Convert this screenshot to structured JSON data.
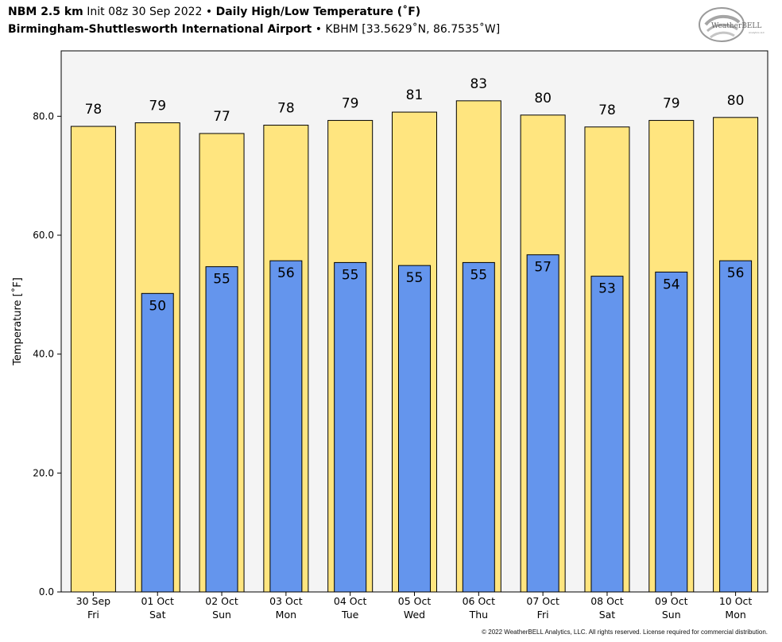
{
  "header": {
    "model": "NBM 2.5 km",
    "init": "Init 08z 30 Sep 2022",
    "sep": "•",
    "product": "Daily High/Low Temperature (˚F)",
    "station_name": "Birmingham-Shuttlesworth International Airport",
    "station_id": "KBHM [33.5629˚N, 86.7535˚W]"
  },
  "logo": {
    "text": "WeatherBELL",
    "sub": "Analytics LLC"
  },
  "footer": {
    "copyright": "© 2022 WeatherBELL Analytics, LLC. All rights reserved. License required for commercial distribution."
  },
  "colors": {
    "high": "#FFE57F",
    "low": "#6495ED",
    "plot_bg": "#F4F4F4"
  },
  "chart_data": {
    "type": "bar",
    "ylabel": "Temperature [˚F]",
    "ylim": [
      0,
      91
    ],
    "yticks": [
      "0.0",
      "20.0",
      "40.0",
      "60.0",
      "80.0"
    ],
    "categories": [
      [
        "30 Sep",
        "Fri"
      ],
      [
        "01 Oct",
        "Sat"
      ],
      [
        "02 Oct",
        "Sun"
      ],
      [
        "03 Oct",
        "Mon"
      ],
      [
        "04 Oct",
        "Tue"
      ],
      [
        "05 Oct",
        "Wed"
      ],
      [
        "06 Oct",
        "Thu"
      ],
      [
        "07 Oct",
        "Fri"
      ],
      [
        "08 Oct",
        "Sat"
      ],
      [
        "09 Oct",
        "Sun"
      ],
      [
        "10 Oct",
        "Mon"
      ]
    ],
    "series": [
      {
        "values": [
          78.3,
          78.9,
          77.1,
          78.5,
          79.3,
          80.7,
          82.6,
          80.2,
          78.2,
          79.3,
          79.8
        ],
        "labels": [
          "78",
          "79",
          "77",
          "78",
          "79",
          "81",
          "83",
          "80",
          "78",
          "79",
          "80"
        ]
      },
      {
        "values": [
          null,
          50.2,
          54.7,
          55.7,
          55.4,
          54.9,
          55.4,
          56.7,
          53.1,
          53.8,
          55.7
        ],
        "labels": [
          "",
          "50",
          "55",
          "56",
          "55",
          "55",
          "55",
          "57",
          "53",
          "54",
          "56"
        ]
      }
    ],
    "grid": false
  }
}
